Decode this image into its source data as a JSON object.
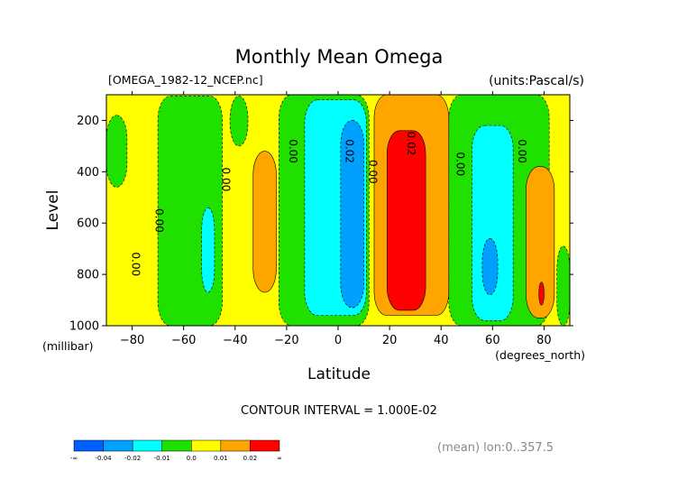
{
  "chart_data": {
    "type": "heatmap",
    "title": "Monthly Mean Omega",
    "file_label": "[OMEGA_1982-12_NCEP.nc]",
    "units_label": "(units:Pascal/s)",
    "xlabel": "Latitude",
    "x_units": "(degrees_north)",
    "ylabel": "Level",
    "y_units": "(millibar)",
    "xlim": [
      -90,
      90
    ],
    "ylim": [
      1000,
      100
    ],
    "x_ticks": [
      -80,
      -60,
      -40,
      -20,
      0,
      20,
      40,
      60,
      80
    ],
    "y_ticks": [
      200,
      400,
      600,
      800,
      1000
    ],
    "contour_interval_text": "CONTOUR INTERVAL = 1.000E-02",
    "mean_text": "(mean) lon:0..357.5",
    "contour_labels": [
      {
        "text": "0.00",
        "lat": -80,
        "level": 760
      },
      {
        "text": "0.00",
        "lat": -71,
        "level": 590
      },
      {
        "text": "0.00",
        "lat": -45,
        "level": 430
      },
      {
        "text": "0.00",
        "lat": -19,
        "level": 320
      },
      {
        "text": "0.02",
        "lat": 3,
        "level": 320
      },
      {
        "text": "0.00",
        "lat": 12,
        "level": 400
      },
      {
        "text": "0.02",
        "lat": 27,
        "level": 290
      },
      {
        "text": "0.00",
        "lat": 46,
        "level": 370
      },
      {
        "text": "0.00",
        "lat": 70,
        "level": 320
      }
    ],
    "colorbar": {
      "colors": [
        "#0060ff",
        "#00a0ff",
        "#00ffff",
        "#20e000",
        "#ffff00",
        "#ffa500",
        "#ff0000"
      ],
      "labels": [
        "-∞",
        "-0.04",
        "-0.02",
        "-0.01",
        "0.0",
        "0.01",
        "0.02",
        "∞"
      ]
    },
    "regions": [
      {
        "level_value": 0,
        "color": "#ffff00",
        "lat": [
          -90,
          90
        ],
        "level": [
          100,
          1000
        ]
      },
      {
        "level_value": -0.01,
        "color": "#20e000",
        "lat": [
          -70,
          -45
        ],
        "level": [
          105,
          1000
        ]
      },
      {
        "level_value": -0.01,
        "color": "#20e000",
        "lat": [
          -42,
          -35
        ],
        "level": [
          105,
          300
        ]
      },
      {
        "level_value": -0.01,
        "color": "#20e000",
        "lat": [
          -23,
          12
        ],
        "level": [
          100,
          1000
        ]
      },
      {
        "level_value": -0.01,
        "color": "#20e000",
        "lat": [
          43,
          82
        ],
        "level": [
          100,
          1000
        ]
      },
      {
        "level_value": -0.01,
        "color": "#20e000",
        "lat": [
          -90,
          -82
        ],
        "level": [
          180,
          460
        ]
      },
      {
        "level_value": -0.01,
        "color": "#20e000",
        "lat": [
          85,
          90
        ],
        "level": [
          690,
          1000
        ]
      },
      {
        "level_value": -0.02,
        "color": "#00ffff",
        "lat": [
          -13,
          11
        ],
        "level": [
          120,
          960
        ]
      },
      {
        "level_value": -0.02,
        "color": "#00ffff",
        "lat": [
          -53,
          -48
        ],
        "level": [
          540,
          870
        ]
      },
      {
        "level_value": -0.02,
        "color": "#00ffff",
        "lat": [
          52,
          68
        ],
        "level": [
          220,
          980
        ]
      },
      {
        "level_value": -0.04,
        "color": "#00a0ff",
        "lat": [
          1,
          10
        ],
        "level": [
          200,
          930
        ]
      },
      {
        "level_value": -0.04,
        "color": "#00a0ff",
        "lat": [
          56,
          62
        ],
        "level": [
          660,
          880
        ]
      },
      {
        "level_value": 0.01,
        "color": "#ffa500",
        "lat": [
          14,
          43
        ],
        "level": [
          100,
          960
        ]
      },
      {
        "level_value": 0.01,
        "color": "#ffa500",
        "lat": [
          -33,
          -24
        ],
        "level": [
          320,
          870
        ]
      },
      {
        "level_value": 0.01,
        "color": "#ffa500",
        "lat": [
          73,
          84
        ],
        "level": [
          380,
          970
        ]
      },
      {
        "level_value": 0.02,
        "color": "#ff0000",
        "lat": [
          19,
          34
        ],
        "level": [
          240,
          940
        ]
      },
      {
        "level_value": 0.02,
        "color": "#ff0000",
        "lat": [
          78,
          80
        ],
        "level": [
          830,
          920
        ]
      }
    ]
  }
}
